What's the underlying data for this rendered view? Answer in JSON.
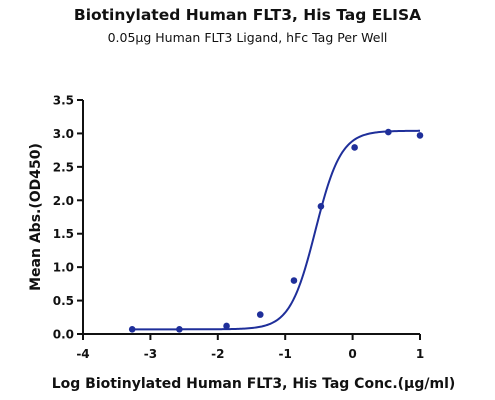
{
  "chart_data": {
    "type": "scatter",
    "title": "Biotinylated Human FLT3, His Tag ELISA",
    "subtitle": "0.05μg Human FLT3 Ligand,  hFc Tag Per Well",
    "xlabel": "Log Biotinylated Human FLT3, His Tag Conc.(μg/ml)",
    "ylabel": "Mean Abs.(OD450)",
    "xlim": [
      -4,
      1
    ],
    "ylim": [
      0,
      3.5
    ],
    "x_ticks": [
      "-4",
      "-3",
      "-2",
      "-1",
      "0",
      "1"
    ],
    "y_ticks": [
      "0.0",
      "0.5",
      "1.0",
      "1.5",
      "2.0",
      "2.5",
      "3.0",
      "3.5"
    ],
    "grid": false,
    "point_color": "#1f2f9a",
    "line_color": "#1f2f9a",
    "series": [
      {
        "x": [
          -3.27,
          -2.57,
          -1.87,
          -1.37,
          -0.87,
          -0.47,
          0.03,
          0.53,
          1.0
        ],
        "y": [
          0.07,
          0.07,
          0.12,
          0.29,
          0.8,
          1.91,
          2.79,
          3.02,
          2.97
        ]
      }
    ],
    "fit": {
      "bottom": 0.07,
      "top": 3.04,
      "ec50_log": -0.55,
      "hill": 2.3
    }
  }
}
